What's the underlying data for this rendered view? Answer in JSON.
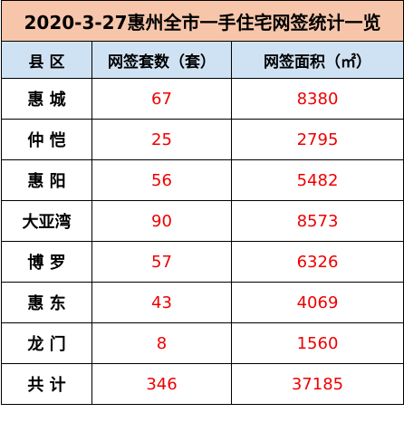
{
  "title": "2020-3-27惠州全市一手住宅网签统计一览",
  "headers": {
    "county": "县 区",
    "units": "网签套数（套）",
    "area": "网签面积（㎡）"
  },
  "rows": [
    {
      "county": "惠 城",
      "units": "67",
      "area": "8380"
    },
    {
      "county": "仲 恺",
      "units": "25",
      "area": "2795"
    },
    {
      "county": "惠 阳",
      "units": "56",
      "area": "5482"
    },
    {
      "county": "大亚湾",
      "units": "90",
      "area": "8573"
    },
    {
      "county": "博 罗",
      "units": "57",
      "area": "6326"
    },
    {
      "county": "惠 东",
      "units": "43",
      "area": "4069"
    },
    {
      "county": "龙 门",
      "units": "8",
      "area": "1560"
    }
  ],
  "total": {
    "label": "共 计",
    "units": "346",
    "area": "37185"
  },
  "colors": {
    "title_bg": "#f7c6aa",
    "header_bg": "#cfe2f4",
    "number_text": "#ee0000"
  }
}
